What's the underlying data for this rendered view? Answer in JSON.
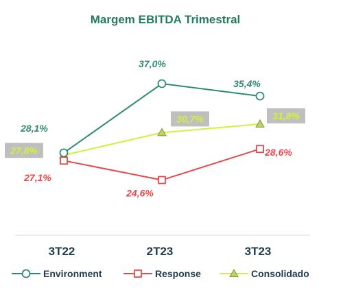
{
  "chart_data": {
    "type": "line",
    "title": "Margem EBITDA Trimestral",
    "categories": [
      "3T22",
      "2T23",
      "3T23"
    ],
    "ylim": [
      22,
      40
    ],
    "grid": false,
    "legend_position": "bottom",
    "series": [
      {
        "name": "Environment",
        "values": [
          28.1,
          37.0,
          35.4
        ],
        "labels": [
          "28,1%",
          "37,0%",
          "35,4%"
        ],
        "color": "#2e8a72",
        "marker": "circle",
        "label_highlight": false
      },
      {
        "name": "Response",
        "values": [
          27.1,
          24.6,
          28.6
        ],
        "labels": [
          "27,1%",
          "24,6%",
          "28,6%"
        ],
        "color": "#e8474b",
        "marker": "square",
        "label_highlight": false
      },
      {
        "name": "Consolidado",
        "values": [
          27.8,
          30.7,
          31.8
        ],
        "labels": [
          "27,8%",
          "30,7%",
          "31,8%"
        ],
        "color": "#d4f03a",
        "marker": "triangle",
        "label_highlight": true,
        "label_bg": "#bfbfbf"
      }
    ]
  },
  "colors": {
    "title": "#237a5f",
    "axis_text": "#1f3b4d",
    "baseline": "#d9d9d9"
  }
}
